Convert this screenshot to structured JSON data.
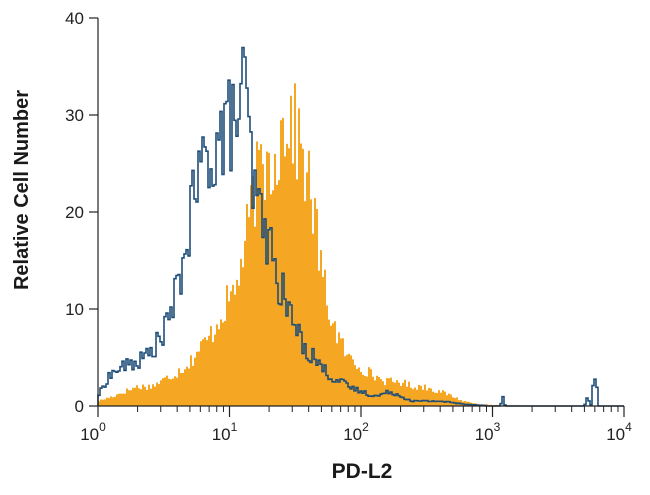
{
  "chart_data": {
    "type": "histogram",
    "xlabel": "PD-L2",
    "ylabel": "Relative Cell Number",
    "x_scale": "log",
    "xlim": [
      1,
      10000
    ],
    "ylim": [
      0,
      40
    ],
    "y_ticks": [
      {
        "value": 0,
        "label": "0"
      },
      {
        "value": 10,
        "label": "10"
      },
      {
        "value": 20,
        "label": "20"
      },
      {
        "value": 30,
        "label": "30"
      },
      {
        "value": 40,
        "label": "40"
      }
    ],
    "x_ticks": [
      {
        "value": 1,
        "base": "10",
        "exp": "0"
      },
      {
        "value": 10,
        "base": "10",
        "exp": "1"
      },
      {
        "value": 100,
        "base": "10",
        "exp": "2"
      },
      {
        "value": 1000,
        "base": "10",
        "exp": "3"
      },
      {
        "value": 10000,
        "base": "10",
        "exp": "4"
      }
    ],
    "grid": false,
    "legend": "none",
    "series": [
      {
        "style": "filled",
        "color": "#F5A623",
        "points": [
          [
            1.0,
            0.5
          ],
          [
            1.3,
            1.0
          ],
          [
            1.6,
            1.5
          ],
          [
            2.0,
            2.0
          ],
          [
            2.5,
            2.0
          ],
          [
            3.0,
            2.5
          ],
          [
            4.0,
            3.5
          ],
          [
            5.0,
            4.5
          ],
          [
            6.0,
            6.0
          ],
          [
            7.0,
            7.0
          ],
          [
            8.0,
            8.5
          ],
          [
            9.0,
            10.0
          ],
          [
            10.0,
            11.0
          ],
          [
            11.0,
            12.0
          ],
          [
            12.0,
            14.0
          ],
          [
            13.0,
            16.0
          ],
          [
            14.0,
            19.0
          ],
          [
            15.0,
            21.0
          ],
          [
            16.0,
            23.0
          ],
          [
            18.0,
            24.5
          ],
          [
            20.0,
            25.0
          ],
          [
            22.0,
            26.0
          ],
          [
            24.0,
            27.5
          ],
          [
            26.0,
            29.0
          ],
          [
            28.0,
            30.5
          ],
          [
            30.0,
            29.0
          ],
          [
            33.0,
            27.5
          ],
          [
            36.0,
            26.0
          ],
          [
            40.0,
            23.0
          ],
          [
            45.0,
            19.0
          ],
          [
            50.0,
            14.0
          ],
          [
            55.0,
            11.0
          ],
          [
            60.0,
            9.0
          ],
          [
            70.0,
            6.5
          ],
          [
            80.0,
            5.0
          ],
          [
            100.0,
            4.0
          ],
          [
            130.0,
            3.0
          ],
          [
            160.0,
            2.5
          ],
          [
            200.0,
            2.5
          ],
          [
            250.0,
            2.0
          ],
          [
            300.0,
            2.0
          ],
          [
            400.0,
            1.5
          ],
          [
            500.0,
            1.0
          ],
          [
            600.0,
            0.5
          ],
          [
            800.0,
            0.2
          ],
          [
            1000.0,
            0.1
          ],
          [
            2000.0,
            0.05
          ],
          [
            10000.0,
            0.0
          ]
        ]
      },
      {
        "style": "outline",
        "color": "#1F4E79",
        "points": [
          [
            1.0,
            1.0
          ],
          [
            1.2,
            3.0
          ],
          [
            1.5,
            4.0
          ],
          [
            2.0,
            4.5
          ],
          [
            2.5,
            5.5
          ],
          [
            3.0,
            7.0
          ],
          [
            3.5,
            9.0
          ],
          [
            4.0,
            12.0
          ],
          [
            4.5,
            15.0
          ],
          [
            5.0,
            19.0
          ],
          [
            5.5,
            22.0
          ],
          [
            6.0,
            24.0
          ],
          [
            7.0,
            26.0
          ],
          [
            8.0,
            27.0
          ],
          [
            9.0,
            28.0
          ],
          [
            10.0,
            29.0
          ],
          [
            11.0,
            29.5
          ],
          [
            12.0,
            31.0
          ],
          [
            13.0,
            33.0
          ],
          [
            14.0,
            28.0
          ],
          [
            15.0,
            23.0
          ],
          [
            16.0,
            21.0
          ],
          [
            18.0,
            19.0
          ],
          [
            20.0,
            17.0
          ],
          [
            22.0,
            14.0
          ],
          [
            25.0,
            12.0
          ],
          [
            28.0,
            10.0
          ],
          [
            32.0,
            8.0
          ],
          [
            36.0,
            6.5
          ],
          [
            40.0,
            5.5
          ],
          [
            45.0,
            5.0
          ],
          [
            50.0,
            4.0
          ],
          [
            60.0,
            3.0
          ],
          [
            70.0,
            2.5
          ],
          [
            80.0,
            2.0
          ],
          [
            100.0,
            1.5
          ],
          [
            130.0,
            1.0
          ],
          [
            170.0,
            1.5
          ],
          [
            200.0,
            1.0
          ],
          [
            250.0,
            0.5
          ],
          [
            300.0,
            0.5
          ],
          [
            400.0,
            0.5
          ],
          [
            600.0,
            0.2
          ],
          [
            1000.0,
            0.0
          ],
          [
            1150.0,
            0.0
          ],
          [
            1200.0,
            1.0
          ],
          [
            1250.0,
            0.0
          ],
          [
            5000.0,
            0.0
          ],
          [
            5300.0,
            1.0
          ],
          [
            5600.0,
            0.0
          ],
          [
            5800.0,
            2.0
          ],
          [
            6000.0,
            3.5
          ],
          [
            6200.0,
            2.0
          ],
          [
            6400.0,
            0.0
          ],
          [
            10000.0,
            0.0
          ]
        ]
      }
    ]
  }
}
